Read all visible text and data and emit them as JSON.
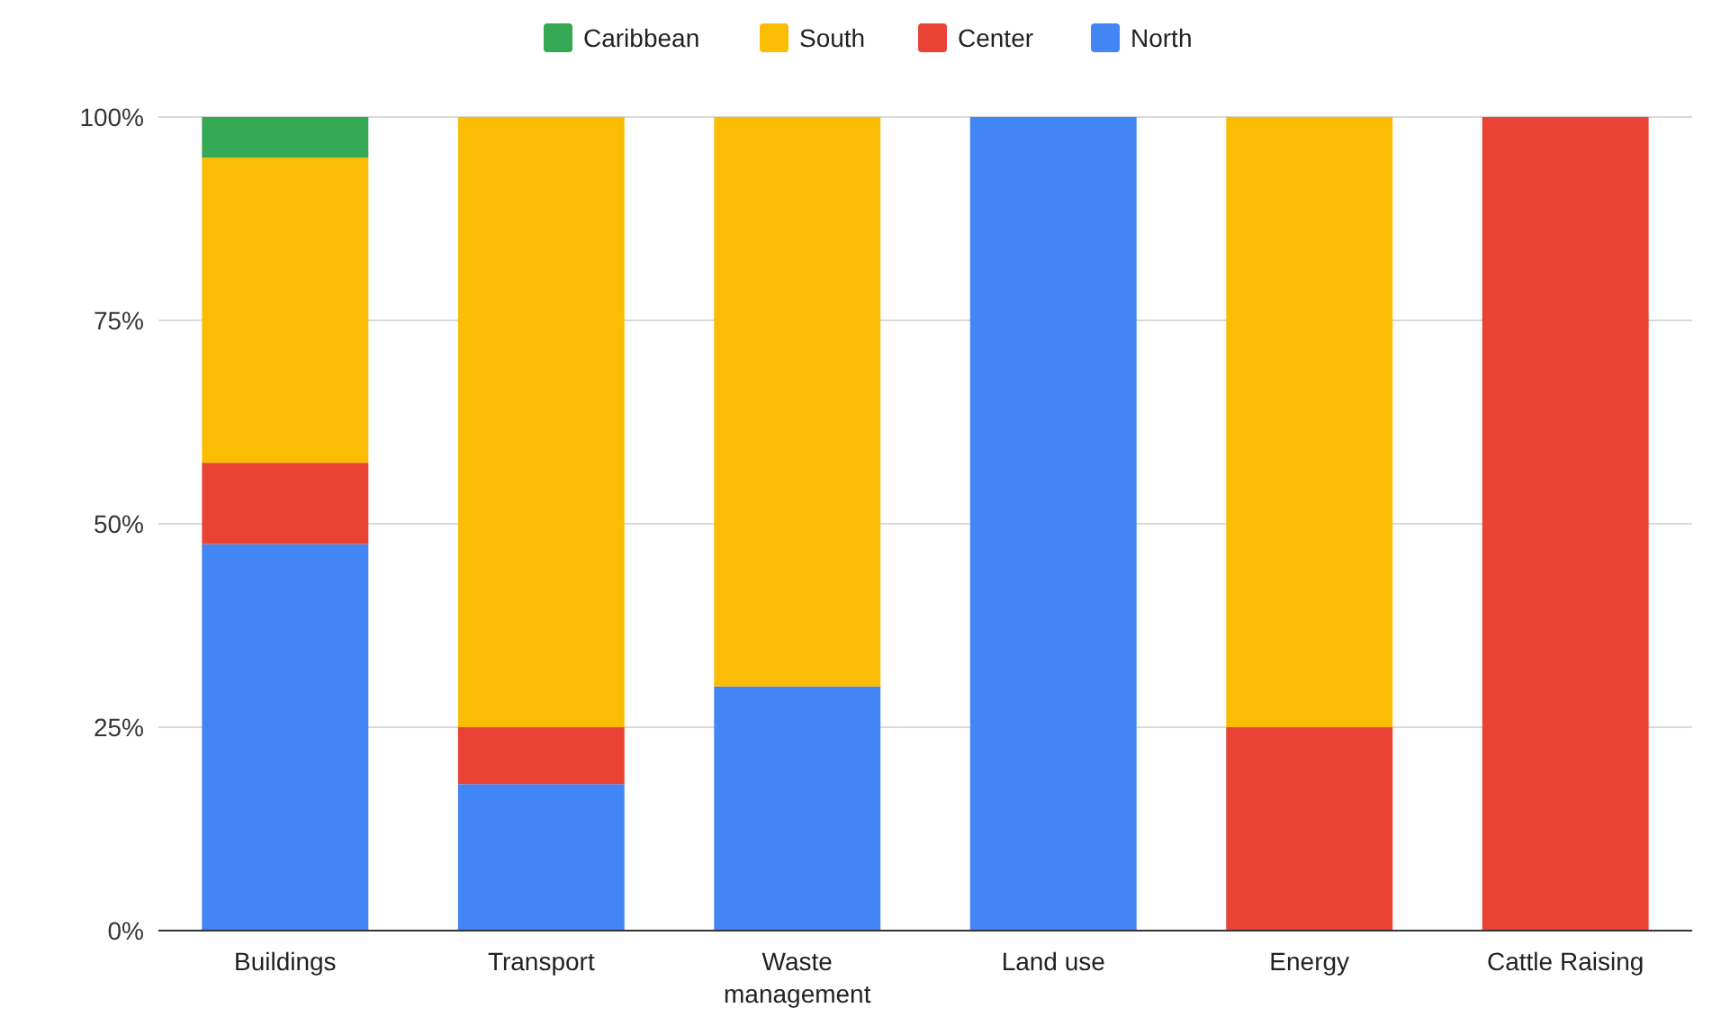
{
  "chart_data": {
    "type": "bar",
    "stacked": true,
    "categories": [
      "Buildings",
      "Transport",
      "Waste management",
      "Land use",
      "Energy",
      "Cattle Raising"
    ],
    "series": [
      {
        "name": "North",
        "color": "#4285f4",
        "values": [
          47.5,
          18,
          30,
          100,
          0,
          0
        ]
      },
      {
        "name": "Center",
        "color": "#ea4335",
        "values": [
          10,
          7,
          0,
          0,
          25,
          100
        ]
      },
      {
        "name": "South",
        "color": "#fbbc04",
        "values": [
          37.5,
          75,
          70,
          0,
          75,
          0
        ]
      },
      {
        "name": "Caribbean",
        "color": "#34a853",
        "values": [
          5,
          0,
          0,
          0,
          0,
          0
        ]
      }
    ],
    "ylim": [
      0,
      100
    ],
    "yticks": [
      {
        "value": 0,
        "label": "0%"
      },
      {
        "value": 25,
        "label": "25%"
      },
      {
        "value": 50,
        "label": "50%"
      },
      {
        "value": 75,
        "label": "75%"
      },
      {
        "value": 100,
        "label": "100%"
      }
    ],
    "grid": "y",
    "legend": "top"
  }
}
